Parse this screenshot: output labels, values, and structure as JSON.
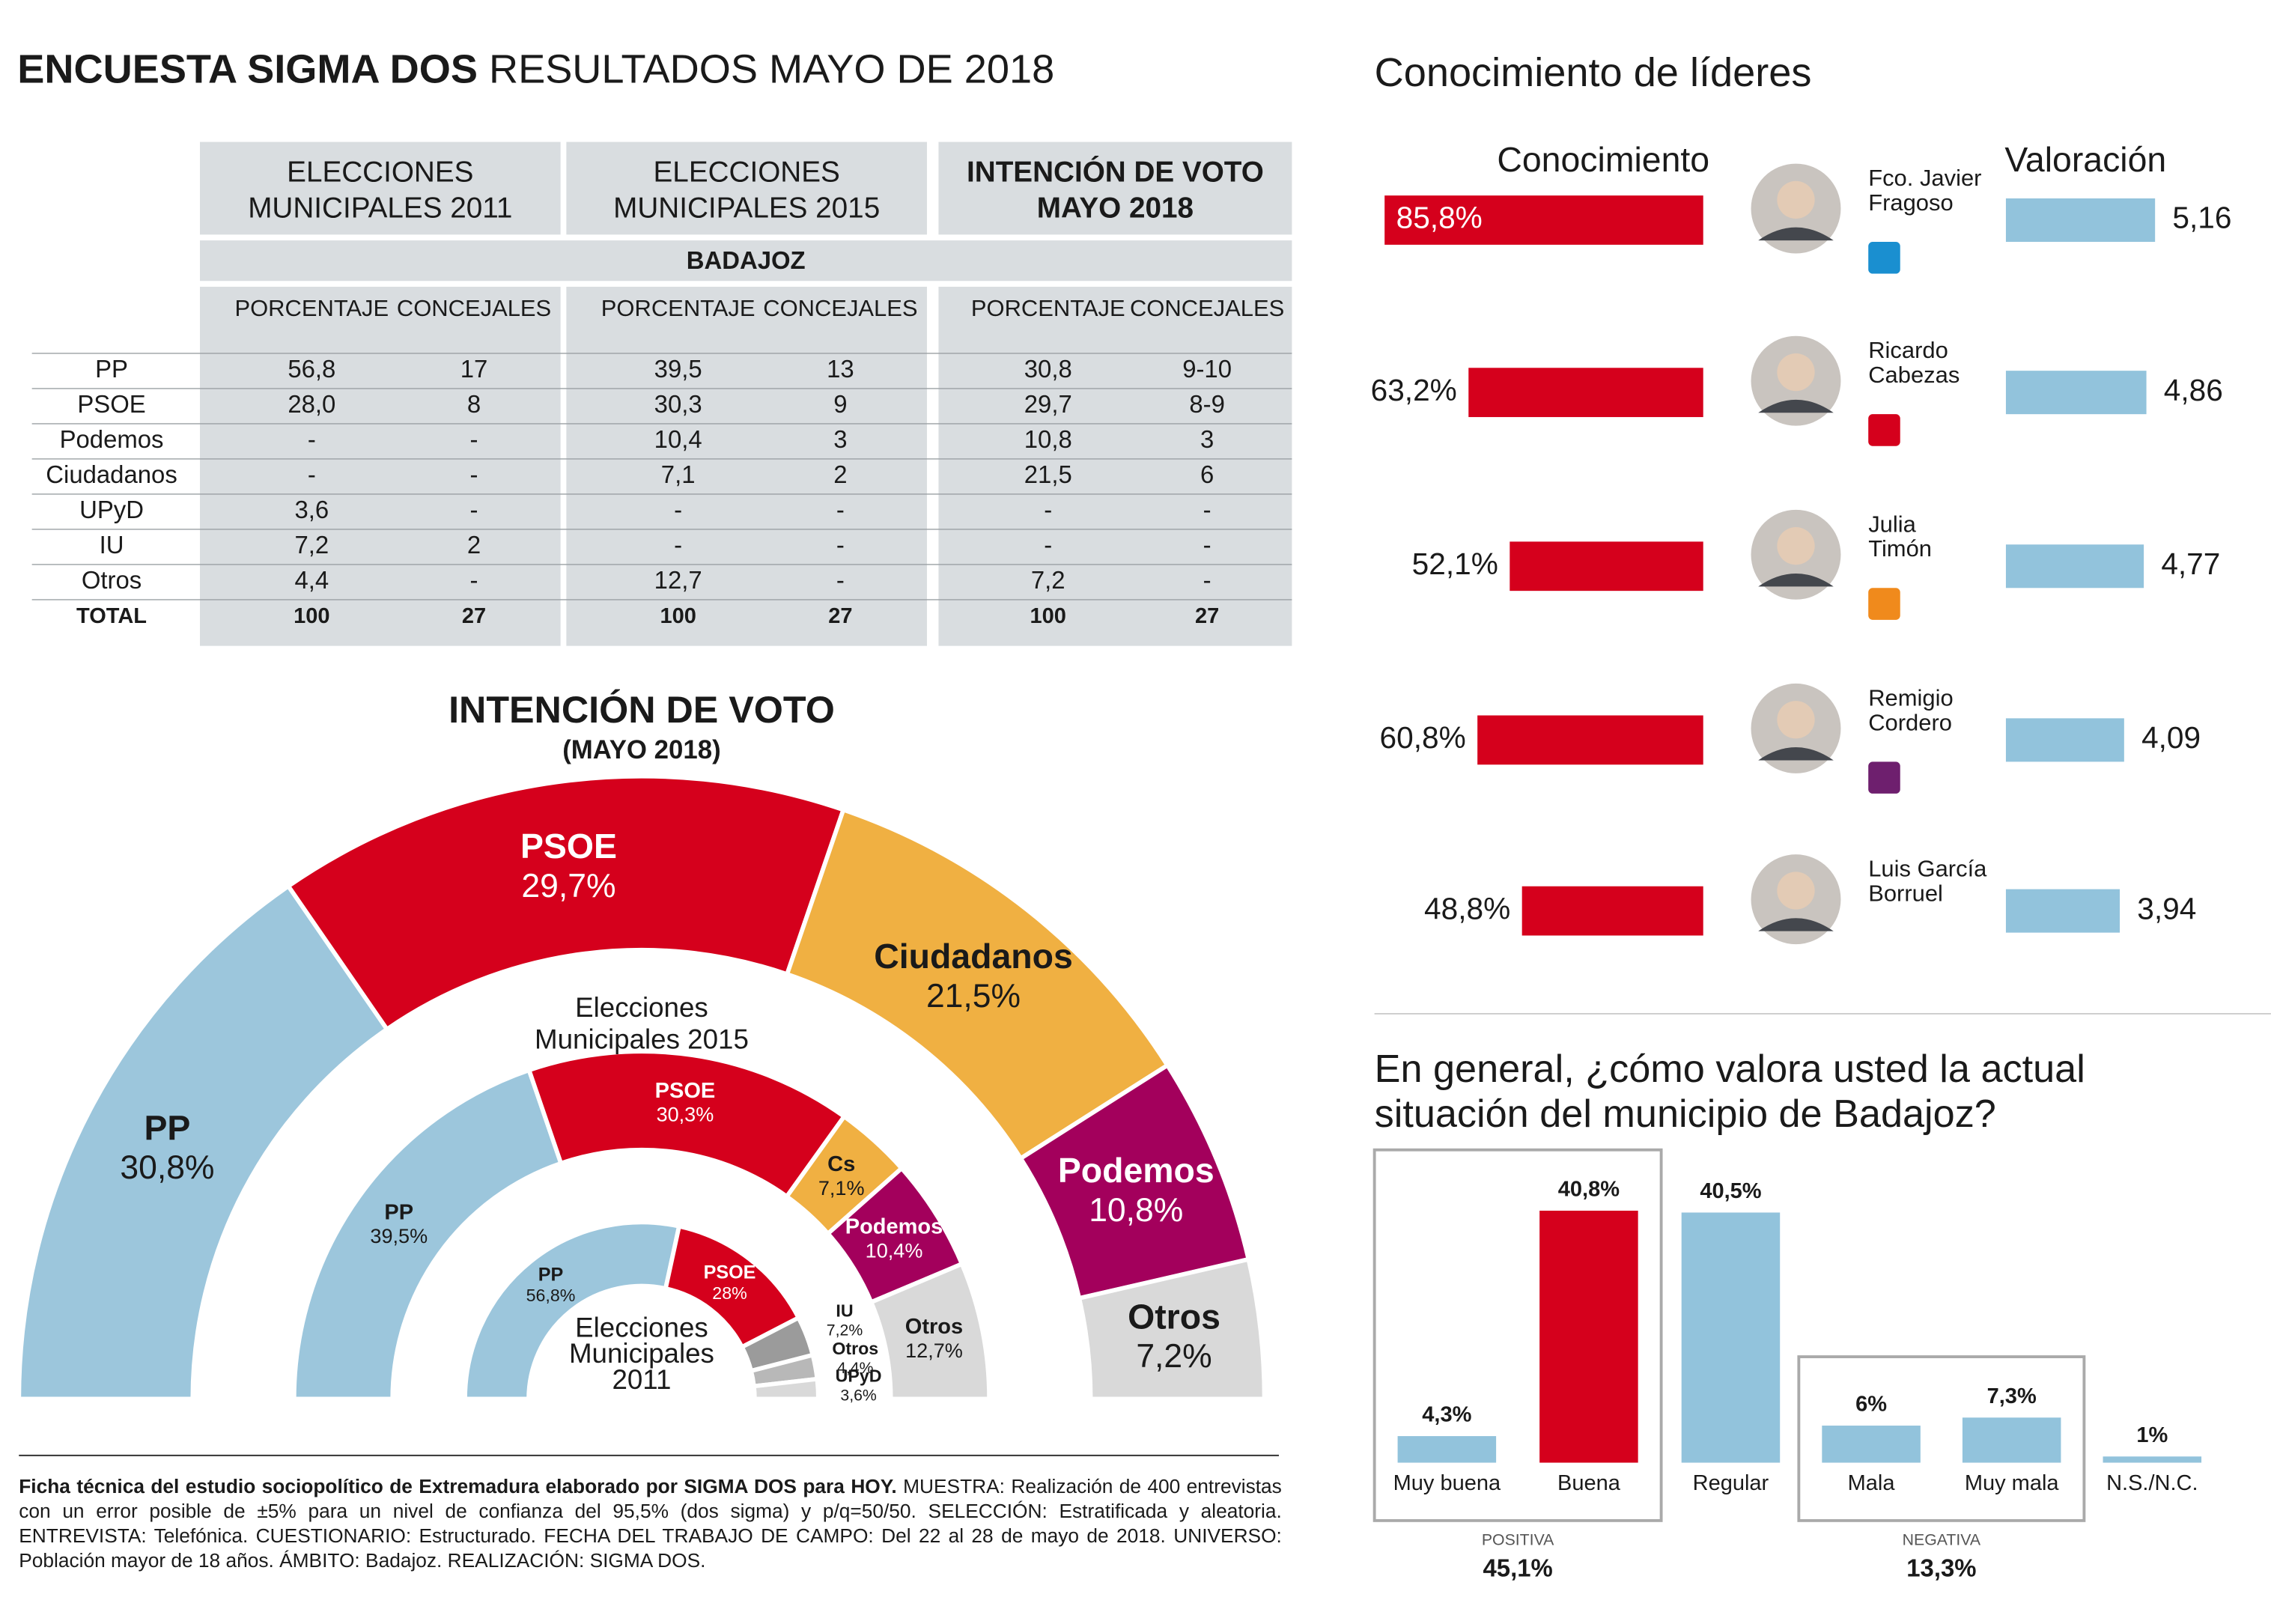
{
  "header": {
    "title_bold": "ENCUESTA SIGMA DOS",
    "title_rest": "RESULTADOS MAYO DE 2018"
  },
  "table": {
    "groups": [
      [
        "ELECCIONES",
        "MUNICIPALES 2011"
      ],
      [
        "ELECCIONES",
        "MUNICIPALES 2015"
      ],
      [
        "INTENCIÓN DE VOTO",
        "MAYO 2018"
      ]
    ],
    "region": "BADAJOZ",
    "columns": [
      "PORCENTAJE",
      "CONCEJALES"
    ],
    "rows": [
      [
        "PP",
        "56,8",
        "17",
        "39,5",
        "13",
        "30,8",
        "9-10"
      ],
      [
        "PSOE",
        "28,0",
        "8",
        "30,3",
        "9",
        "29,7",
        "8-9"
      ],
      [
        "Podemos",
        "-",
        "-",
        "10,4",
        "3",
        "10,8",
        "3"
      ],
      [
        "Ciudadanos",
        "-",
        "-",
        "7,1",
        "2",
        "21,5",
        "6"
      ],
      [
        "UPyD",
        "3,6",
        "-",
        "-",
        "-",
        "-",
        "-"
      ],
      [
        "IU",
        "7,2",
        "2",
        "-",
        "-",
        "-",
        "-"
      ],
      [
        "Otros",
        "4,4",
        "-",
        "12,7",
        "-",
        "7,2",
        "-"
      ],
      [
        "TOTAL",
        "100",
        "27",
        "100",
        "27",
        "100",
        "27"
      ]
    ]
  },
  "chart_data": [
    {
      "type": "semicircle",
      "title": "INTENCIÓN DE VOTO",
      "subtitle": "(MAYO 2018)",
      "rings": [
        {
          "categories": [
            "PP",
            "PSOE",
            "Ciudadanos",
            "Podemos",
            "Otros"
          ],
          "values": [
            30.8,
            29.7,
            21.5,
            10.8,
            7.2
          ],
          "value_labels": [
            "30,8%",
            "29,7%",
            "21,5%",
            "10,8%",
            "7,2%"
          ],
          "colors": [
            "#9cc6dc",
            "#d5001c",
            "#f0b042",
            "#a3005c",
            "#d9d9d9"
          ]
        },
        {
          "label": [
            "Elecciones",
            "Municipales 2015"
          ],
          "categories": [
            "PP",
            "PSOE",
            "Cs",
            "Podemos",
            "Otros"
          ],
          "values": [
            39.5,
            30.3,
            7.1,
            10.4,
            12.7
          ],
          "value_labels": [
            "39,5%",
            "30,3%",
            "7,1%",
            "10,4%",
            "12,7%"
          ],
          "colors": [
            "#9cc6dc",
            "#d5001c",
            "#f0b042",
            "#a3005c",
            "#d9d9d9"
          ]
        },
        {
          "label": [
            "Elecciones",
            "Municipales",
            "2011"
          ],
          "categories": [
            "PP",
            "PSOE",
            "IU",
            "Otros",
            "UPyD"
          ],
          "values": [
            56.8,
            28,
            7.2,
            4.4,
            3.6
          ],
          "value_labels": [
            "56,8%",
            "28%",
            "7,2%",
            "4,4%",
            "3,6%"
          ],
          "colors": [
            "#9cc6dc",
            "#d5001c",
            "#9b9b9b",
            "#b8b8b8",
            "#d9d9d9"
          ]
        }
      ]
    },
    {
      "type": "paired-bar",
      "title": "Conocimiento de líderes",
      "categories": [
        [
          "Fco. Javier",
          "Fragoso"
        ],
        [
          "Ricardo",
          "Cabezas"
        ],
        [
          "Julia",
          "Timón"
        ],
        [
          "Remigio",
          "Cordero"
        ],
        [
          "Luis García",
          "Borruel"
        ]
      ],
      "series": [
        {
          "name": "Conocimiento",
          "color": "#d5001c",
          "values": [
            85.8,
            63.2,
            52.1,
            60.8,
            48.8
          ],
          "value_labels": [
            "85,8%",
            "63,2%",
            "52,1%",
            "60,8%",
            "48,8%"
          ]
        },
        {
          "name": "Valoración",
          "color": "#92c3dc",
          "values": [
            5.16,
            4.86,
            4.77,
            4.09,
            3.94
          ],
          "value_labels": [
            "5,16",
            "4,86",
            "4,77",
            "4,09",
            "3,94"
          ]
        }
      ]
    },
    {
      "type": "bar",
      "title": [
        "En general, ¿cómo valora usted la actual",
        "situación del municipio de Badajoz?"
      ],
      "categories": [
        "Muy buena",
        "Buena",
        "Regular",
        "Mala",
        "Muy mala",
        "N.S./N.C."
      ],
      "values": [
        4.3,
        40.8,
        40.5,
        6,
        7.3,
        1
      ],
      "value_labels": [
        "4,3%",
        "40,8%",
        "40,5%",
        "6%",
        "7,3%",
        "1%"
      ],
      "colors": [
        "#92c3dc",
        "#d5001c",
        "#92c3dc",
        "#92c3dc",
        "#92c3dc",
        "#92c3dc"
      ],
      "groups": [
        {
          "name": "POSITIVA",
          "value": 45.1,
          "value_label": "45,1%",
          "members": [
            "Muy buena",
            "Buena"
          ]
        },
        {
          "name": "NEGATIVA",
          "value": 13.3,
          "value_label": "13,3%",
          "members": [
            "Mala",
            "Muy mala"
          ]
        }
      ]
    }
  ],
  "footnote": {
    "bold": "Ficha técnica del estudio sociopolítico de Extremadura elaborado por SIGMA DOS para HOY.",
    "text": "MUESTRA: Realización de 400 entrevistas con un error posible de ±5% para un nivel de confianza del 95,5% (dos sigma) y p/q=50/50. SELECCIÓN: Estratificada y aleatoria. ENTREVISTA: Telefónica. CUESTIONARIO: Estructurado. FECHA DEL TRABAJO DE CAMPO: Del 22 al 28 de mayo de 2018. UNIVERSO: Población mayor de 18 años. ÁMBITO: Badajoz. REALIZACIÓN: SIGMA DOS."
  }
}
